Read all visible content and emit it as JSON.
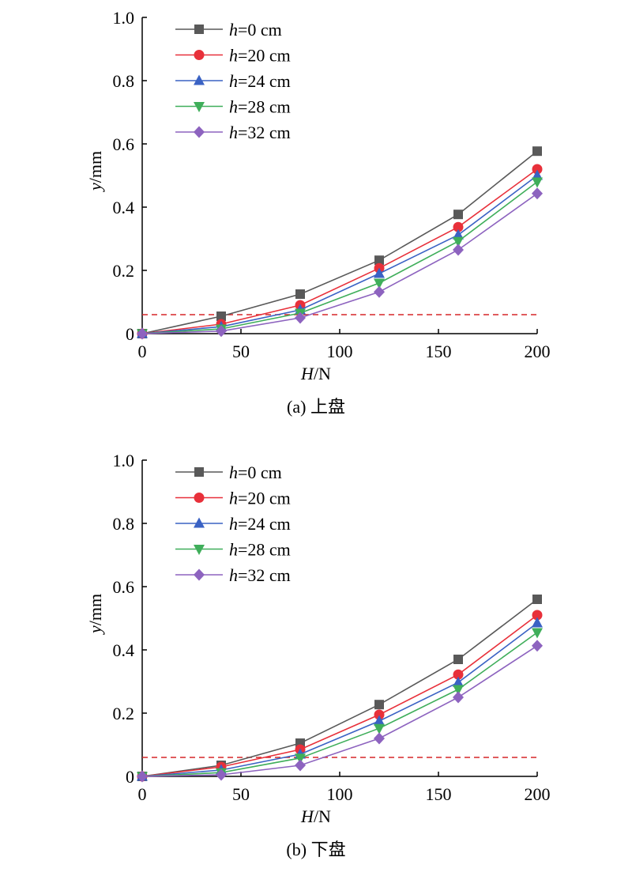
{
  "chart_data": [
    {
      "type": "line",
      "caption": "(a) 上盘",
      "xlabel": {
        "var": "H",
        "unit": "/N"
      },
      "ylabel": {
        "var": "y",
        "unit": "/mm"
      },
      "xlim": [
        0,
        200
      ],
      "ylim": [
        0,
        1.0
      ],
      "xticks": [
        "0",
        "50",
        "100",
        "150",
        "200"
      ],
      "yticks": [
        "0",
        "0.2",
        "0.4",
        "0.6",
        "0.8",
        "1.0"
      ],
      "xtick_values": [
        0,
        50,
        100,
        150,
        200
      ],
      "ytick_values": [
        0,
        0.2,
        0.4,
        0.6,
        0.8,
        1.0
      ],
      "grid": false,
      "legend_position": "top-left",
      "reference_line": {
        "y": 0.06,
        "color": "#d62728",
        "style": "dashed"
      },
      "x": [
        0,
        40,
        80,
        120,
        160,
        200
      ],
      "series": [
        {
          "var": "h",
          "label": "=0 cm",
          "marker": "square",
          "color": "#595959",
          "values": [
            0,
            0.055,
            0.125,
            0.232,
            0.377,
            0.577
          ]
        },
        {
          "var": "h",
          "label": "=20 cm",
          "marker": "circle",
          "color": "#e8303a",
          "values": [
            0,
            0.03,
            0.09,
            0.207,
            0.337,
            0.52
          ]
        },
        {
          "var": "h",
          "label": "=24 cm",
          "marker": "triangle-up",
          "color": "#3a62c4",
          "values": [
            0,
            0.022,
            0.075,
            0.19,
            0.312,
            0.5
          ]
        },
        {
          "var": "h",
          "label": "=28 cm",
          "marker": "triangle-down",
          "color": "#3fae5a",
          "values": [
            0,
            0.015,
            0.065,
            0.16,
            0.292,
            0.48
          ]
        },
        {
          "var": "h",
          "label": "=32 cm",
          "marker": "diamond",
          "color": "#8d63bf",
          "values": [
            0,
            0.008,
            0.05,
            0.132,
            0.265,
            0.443
          ]
        }
      ]
    },
    {
      "type": "line",
      "caption": "(b) 下盘",
      "xlabel": {
        "var": "H",
        "unit": "/N"
      },
      "ylabel": {
        "var": "y",
        "unit": "/mm"
      },
      "xlim": [
        0,
        200
      ],
      "ylim": [
        0,
        1.0
      ],
      "xticks": [
        "0",
        "50",
        "100",
        "150",
        "200"
      ],
      "yticks": [
        "0",
        "0.2",
        "0.4",
        "0.6",
        "0.8",
        "1.0"
      ],
      "xtick_values": [
        0,
        50,
        100,
        150,
        200
      ],
      "ytick_values": [
        0,
        0.2,
        0.4,
        0.6,
        0.8,
        1.0
      ],
      "grid": false,
      "legend_position": "top-left",
      "reference_line": {
        "y": 0.06,
        "color": "#d62728",
        "style": "dashed"
      },
      "x": [
        0,
        40,
        80,
        120,
        160,
        200
      ],
      "series": [
        {
          "var": "h",
          "label": "=0 cm",
          "marker": "square",
          "color": "#595959",
          "values": [
            0,
            0.035,
            0.105,
            0.227,
            0.37,
            0.56
          ]
        },
        {
          "var": "h",
          "label": "=20 cm",
          "marker": "circle",
          "color": "#e8303a",
          "values": [
            0,
            0.03,
            0.085,
            0.195,
            0.322,
            0.51
          ]
        },
        {
          "var": "h",
          "label": "=24 cm",
          "marker": "triangle-up",
          "color": "#3a62c4",
          "values": [
            0,
            0.02,
            0.07,
            0.175,
            0.297,
            0.485
          ]
        },
        {
          "var": "h",
          "label": "=28 cm",
          "marker": "triangle-down",
          "color": "#3fae5a",
          "values": [
            0,
            0.012,
            0.058,
            0.152,
            0.275,
            0.455
          ]
        },
        {
          "var": "h",
          "label": "=32 cm",
          "marker": "diamond",
          "color": "#8d63bf",
          "values": [
            0,
            0.005,
            0.035,
            0.12,
            0.25,
            0.413
          ]
        }
      ]
    }
  ]
}
